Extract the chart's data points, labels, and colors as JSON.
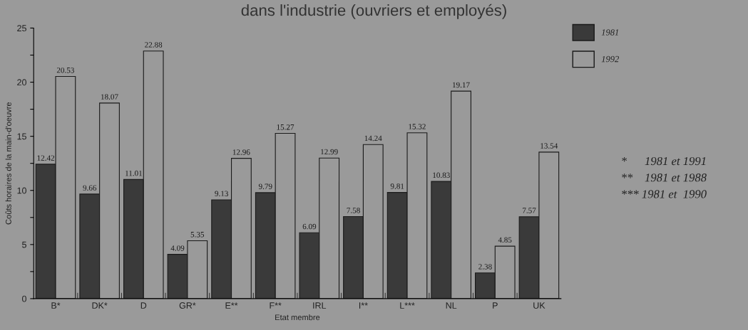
{
  "chart_data": {
    "type": "bar",
    "title": "dans l'industrie (ouvriers et employés)",
    "xlabel": "Etat membre",
    "ylabel": "Coûts horaires de la main-d'oeuvre",
    "categories": [
      "B*",
      "DK*",
      "D",
      "GR*",
      "E**",
      "F**",
      "IRL",
      "I**",
      "L***",
      "NL",
      "P",
      "UK"
    ],
    "series": [
      {
        "name": "1981",
        "color": "#3a3a3a",
        "values": [
          12.42,
          9.66,
          11.01,
          4.09,
          9.13,
          9.79,
          6.09,
          7.58,
          9.81,
          10.83,
          2.38,
          7.57
        ]
      },
      {
        "name": "1992",
        "color": "#9a9a9a",
        "values": [
          20.53,
          18.07,
          22.88,
          5.35,
          12.96,
          15.27,
          12.99,
          14.24,
          15.32,
          19.17,
          4.85,
          13.54
        ]
      }
    ],
    "ylim": [
      0,
      25
    ],
    "yticks": [
      0,
      {
        "value": 2.5,
        "label": null
      },
      5,
      {
        "value": 7.5,
        "label": null
      },
      10,
      {
        "value": 12.5,
        "label": null
      },
      15,
      {
        "value": 17.5,
        "label": null
      },
      20,
      {
        "value": 22.5,
        "label": null
      },
      25
    ],
    "data_labels": true,
    "legend": "top right",
    "grid": false,
    "annotations": [
      "*      1981 et 1991",
      "**    1981 et 1988",
      "*** 1981 et  1990"
    ]
  }
}
